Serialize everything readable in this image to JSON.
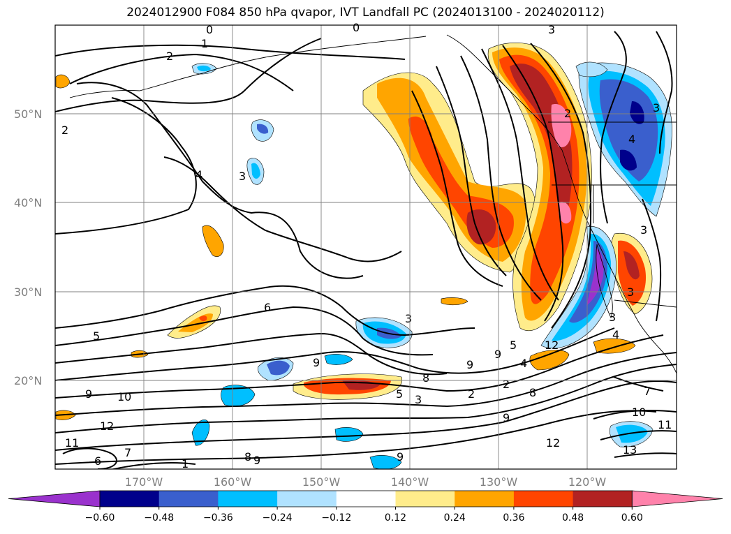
{
  "title": "2024012900 F084 850 hPa qvapor, IVT Landfall PC (2024013100 - 2024020112)",
  "lat_labels": [
    "50°N",
    "40°N",
    "30°N",
    "20°N"
  ],
  "lon_labels": [
    "170°W",
    "160°W",
    "150°W",
    "140°W",
    "130°W",
    "120°W"
  ],
  "colorbar": {
    "ticks": [
      "−0.60",
      "−0.48",
      "−0.36",
      "−0.24",
      "−0.12",
      "0.12",
      "0.24",
      "0.36",
      "0.48",
      "0.60"
    ],
    "colors": [
      "#9a32cd",
      "#00008b",
      "#3a5fcd",
      "#00bfff",
      "#b0e2ff",
      "#ffffff",
      "#ffec8b",
      "#ffa500",
      "#ff4500",
      "#b22222",
      "#ff82ab"
    ]
  },
  "contour_labels": [
    "0",
    "1",
    "2",
    "0",
    "3",
    "2",
    "3",
    "4",
    "3",
    "4",
    "3",
    "2",
    "6",
    "3",
    "5",
    "9",
    "9",
    "9",
    "8",
    "2",
    "4",
    "2",
    "9",
    "10",
    "5",
    "3",
    "8",
    "12",
    "11",
    "12",
    "6",
    "7",
    "1",
    "8",
    "9",
    "9",
    "9",
    "12",
    "7",
    "10",
    "11",
    "13",
    "3",
    "4",
    "3",
    "5"
  ],
  "fill_classes": {
    "purple": "#9a32cd",
    "navy": "#00008b",
    "royal": "#3a5fcd",
    "sky": "#00bfff",
    "lightsky": "#b0e2ff",
    "yellow": "#ffec8b",
    "orange": "#ffa500",
    "redorange": "#ff4500",
    "firebrick": "#b22222",
    "pink": "#ff82ab"
  }
}
